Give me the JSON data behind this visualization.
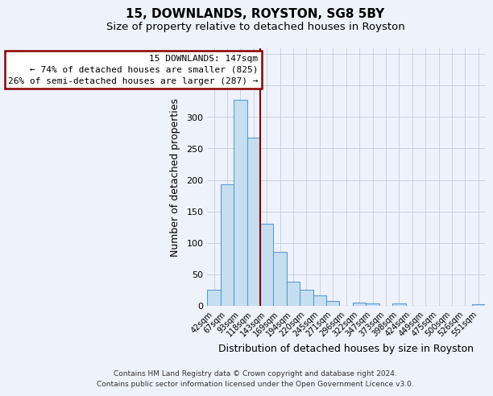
{
  "title": "15, DOWNLANDS, ROYSTON, SG8 5BY",
  "subtitle": "Size of property relative to detached houses in Royston",
  "xlabel": "Distribution of detached houses by size in Royston",
  "ylabel": "Number of detached properties",
  "bar_labels": [
    "42sqm",
    "67sqm",
    "93sqm",
    "118sqm",
    "143sqm",
    "169sqm",
    "194sqm",
    "220sqm",
    "245sqm",
    "271sqm",
    "296sqm",
    "322sqm",
    "347sqm",
    "373sqm",
    "398sqm",
    "424sqm",
    "449sqm",
    "475sqm",
    "500sqm",
    "526sqm",
    "551sqm"
  ],
  "bar_values": [
    25,
    193,
    328,
    267,
    130,
    86,
    38,
    25,
    17,
    8,
    0,
    5,
    3,
    0,
    3,
    0,
    0,
    0,
    0,
    0,
    2
  ],
  "bar_color": "#c5dff0",
  "bar_edge_color": "#5b9bd5",
  "ylim": [
    0,
    410
  ],
  "yticks": [
    0,
    50,
    100,
    150,
    200,
    250,
    300,
    350,
    400
  ],
  "marker_bar_index": 3,
  "marker_label": "15 DOWNLANDS: 147sqm",
  "marker_color": "#8b0000",
  "annotation_line1": "← 74% of detached houses are smaller (825)",
  "annotation_line2": "26% of semi-detached houses are larger (287) →",
  "footer1": "Contains HM Land Registry data © Crown copyright and database right 2024.",
  "footer2": "Contains public sector information licensed under the Open Government Licence v3.0.",
  "background_color": "#eef2fb",
  "grid_color": "#c8d0e0",
  "title_fontsize": 11,
  "subtitle_fontsize": 9.5
}
